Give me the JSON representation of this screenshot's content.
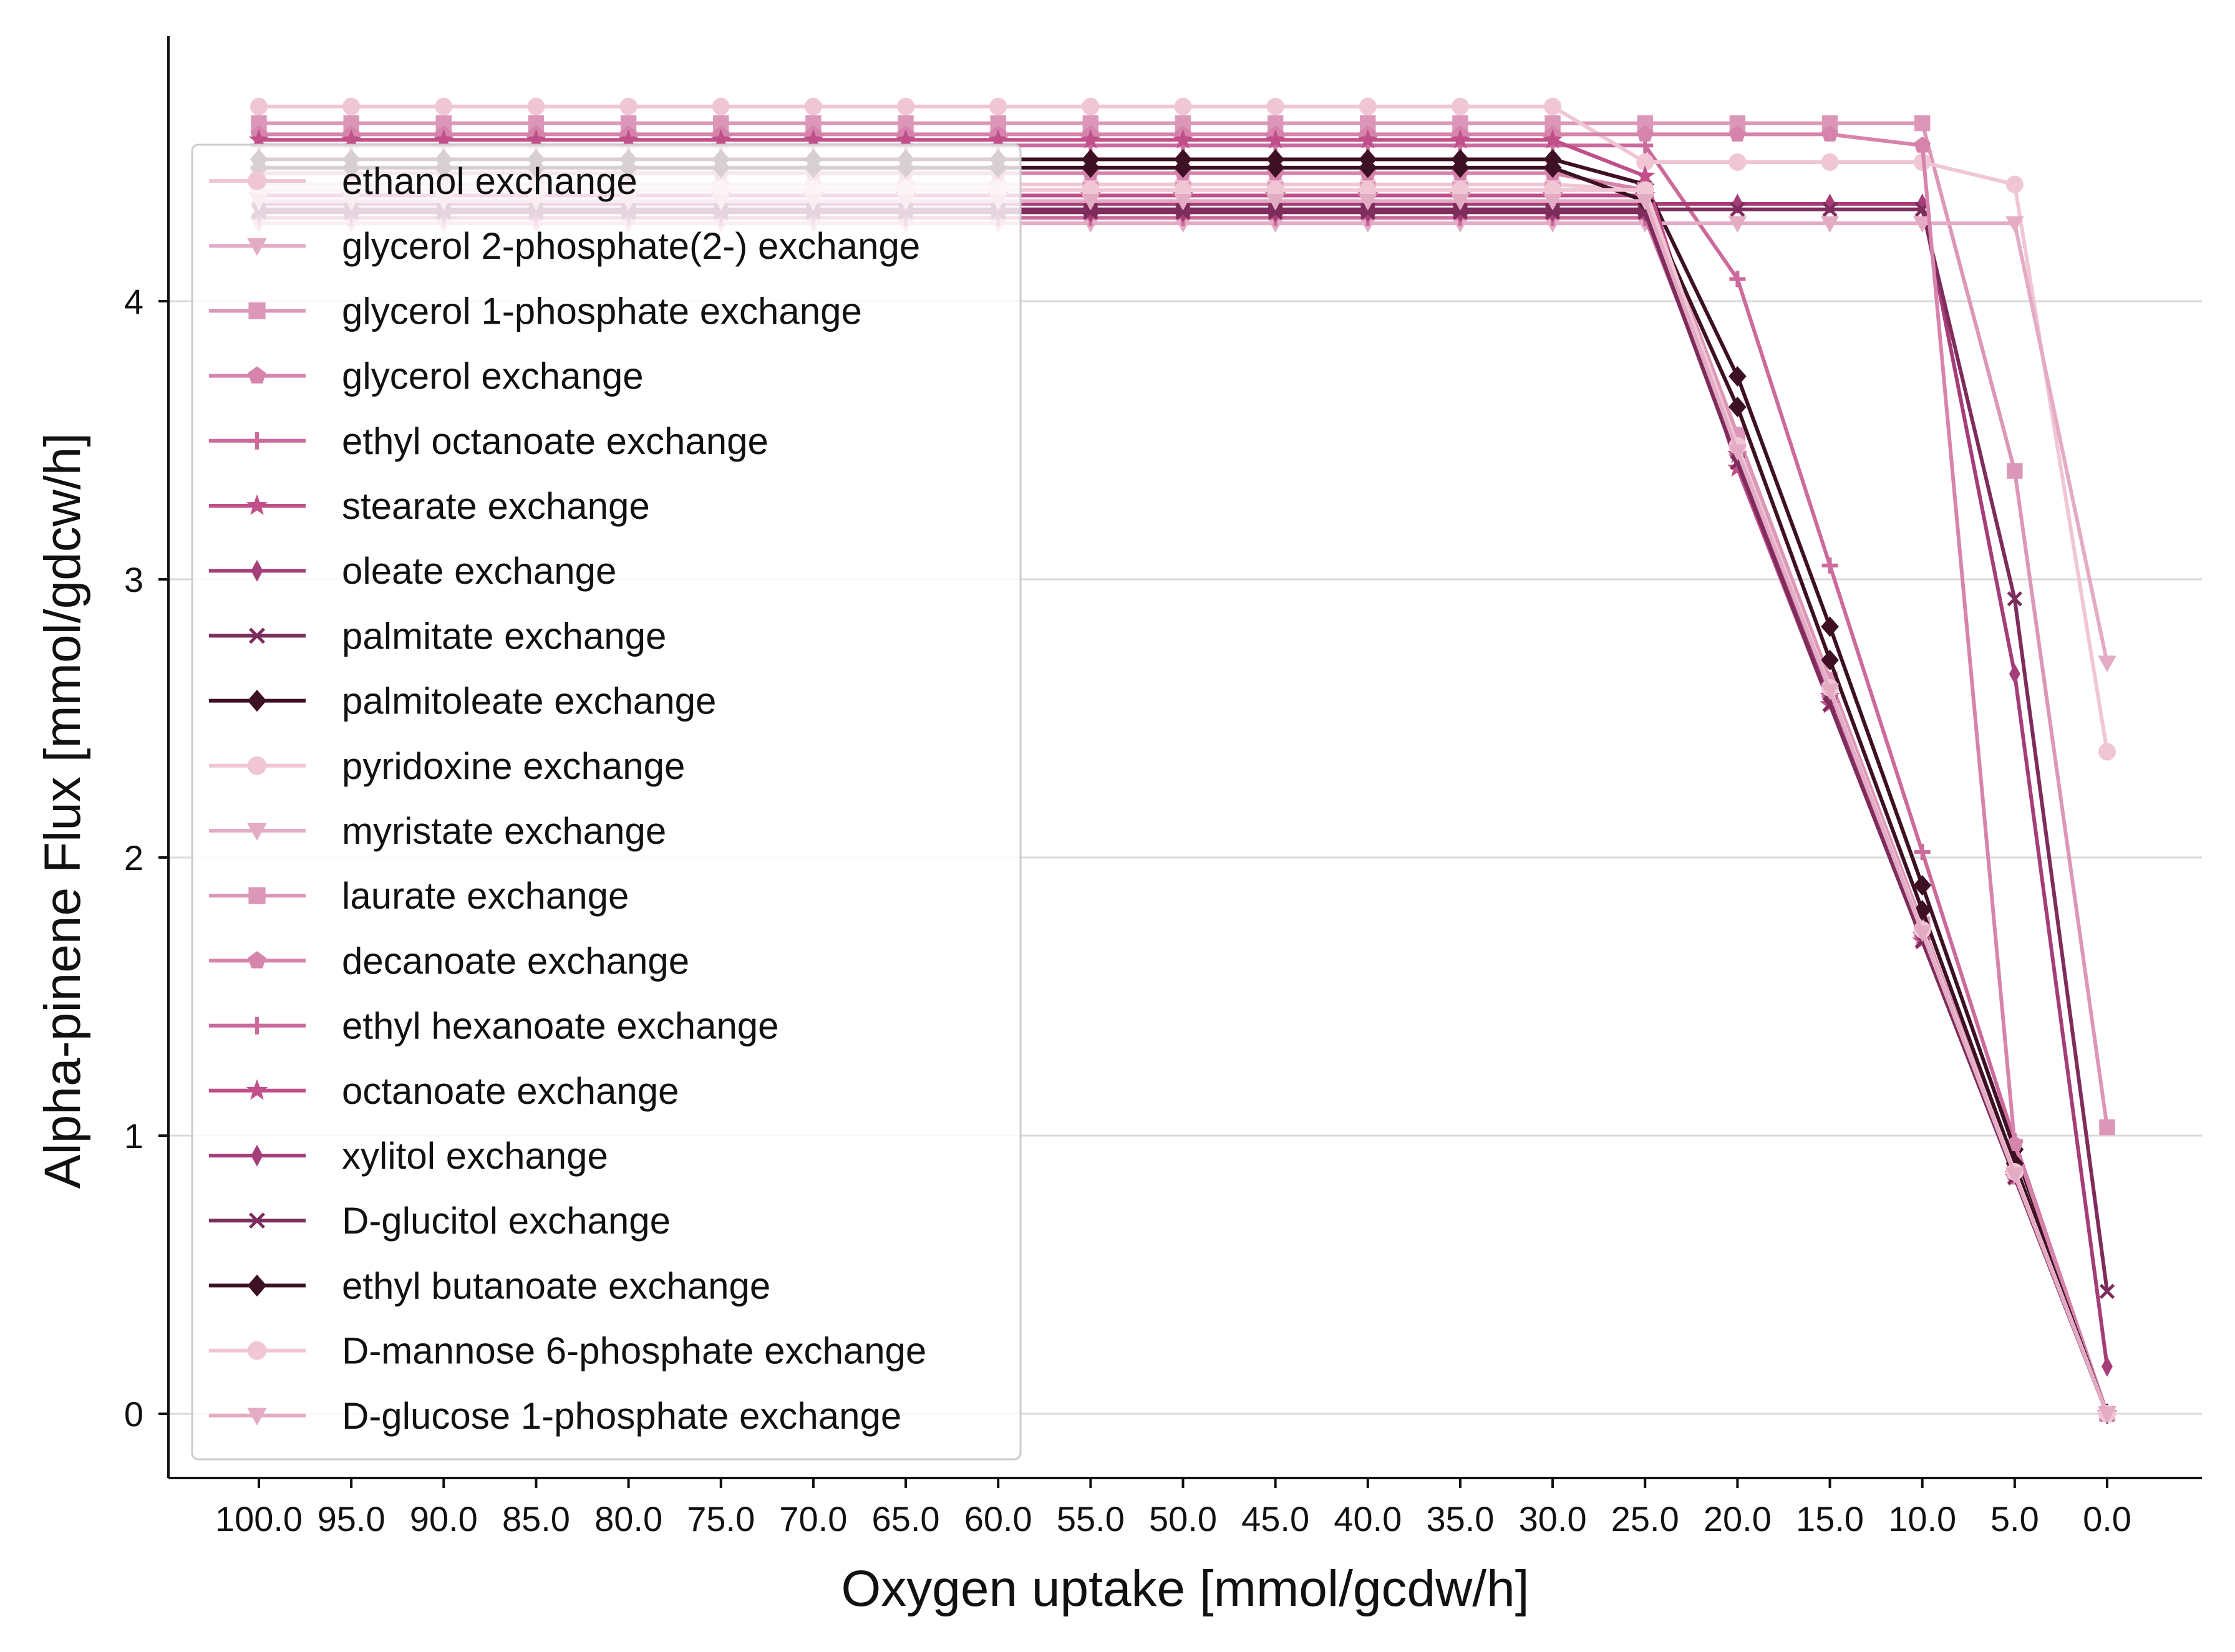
{
  "chart_data": {
    "type": "line",
    "title": "",
    "xlabel": "Oxygen uptake [mmol/gcdw/h]",
    "ylabel": "Alpha-pinene Flux [mmol/gdcw/h]",
    "x": [
      100.0,
      95.0,
      90.0,
      85.0,
      80.0,
      75.0,
      70.0,
      65.0,
      60.0,
      55.0,
      50.0,
      45.0,
      40.0,
      35.0,
      30.0,
      25.0,
      20.0,
      15.0,
      10.0,
      5.0,
      0.0
    ],
    "x_tick_labels": [
      "100.0",
      "95.0",
      "90.0",
      "85.0",
      "80.0",
      "75.0",
      "70.0",
      "65.0",
      "60.0",
      "55.0",
      "50.0",
      "45.0",
      "40.0",
      "35.0",
      "30.0",
      "25.0",
      "20.0",
      "15.0",
      "10.0",
      "5.0",
      "0.0"
    ],
    "x_reversed": true,
    "y_ticks": [
      0,
      1,
      2,
      3,
      4
    ],
    "ylim": [
      -0.23,
      4.95
    ],
    "grid": "horizontal",
    "legend_position": "left",
    "series": [
      {
        "name": "ethanol exchange",
        "color": "#f0c6d5",
        "marker": "circle",
        "values": [
          4.42,
          4.42,
          4.42,
          4.42,
          4.42,
          4.42,
          4.42,
          4.42,
          4.42,
          4.42,
          4.42,
          4.42,
          4.42,
          4.42,
          4.42,
          4.4,
          3.48,
          2.62,
          1.75,
          0.86,
          0.0
        ]
      },
      {
        "name": "glycerol 2-phosphate(2-) exchange",
        "color": "#e4abc4",
        "marker": "triangle-down",
        "values": [
          4.33,
          4.33,
          4.33,
          4.33,
          4.33,
          4.33,
          4.33,
          4.33,
          4.33,
          4.33,
          4.33,
          4.33,
          4.33,
          4.33,
          4.33,
          4.33,
          3.5,
          2.6,
          1.73,
          0.86,
          0.0
        ]
      },
      {
        "name": "glycerol 1-phosphate exchange",
        "color": "#dc97b8",
        "marker": "square",
        "values": [
          4.64,
          4.64,
          4.64,
          4.64,
          4.64,
          4.64,
          4.64,
          4.64,
          4.64,
          4.64,
          4.64,
          4.64,
          4.64,
          4.64,
          4.64,
          4.64,
          4.64,
          4.64,
          4.64,
          3.39,
          1.03
        ]
      },
      {
        "name": "glycerol exchange",
        "color": "#d684ac",
        "marker": "pentagon",
        "values": [
          4.46,
          4.46,
          4.46,
          4.46,
          4.46,
          4.46,
          4.46,
          4.46,
          4.46,
          4.46,
          4.46,
          4.46,
          4.46,
          4.46,
          4.46,
          4.4,
          3.45,
          2.6,
          1.73,
          0.85,
          0.0
        ]
      },
      {
        "name": "ethyl octanoate exchange",
        "color": "#cc6a9c",
        "marker": "plus",
        "values": [
          4.56,
          4.56,
          4.56,
          4.56,
          4.56,
          4.56,
          4.56,
          4.56,
          4.56,
          4.56,
          4.56,
          4.56,
          4.56,
          4.56,
          4.56,
          4.56,
          4.08,
          3.05,
          2.02,
          0.98,
          0.0
        ]
      },
      {
        "name": "stearate exchange",
        "color": "#c04f8a",
        "marker": "star",
        "values": [
          4.38,
          4.38,
          4.38,
          4.38,
          4.38,
          4.38,
          4.38,
          4.38,
          4.38,
          4.38,
          4.38,
          4.38,
          4.38,
          4.38,
          4.38,
          4.38,
          3.45,
          2.58,
          1.72,
          0.86,
          0.0
        ]
      },
      {
        "name": "oleate exchange",
        "color": "#a53d78",
        "marker": "thin-diamond",
        "values": [
          4.35,
          4.35,
          4.35,
          4.35,
          4.35,
          4.35,
          4.35,
          4.35,
          4.35,
          4.35,
          4.35,
          4.35,
          4.35,
          4.35,
          4.35,
          4.35,
          4.35,
          4.35,
          4.35,
          2.66,
          0.17
        ]
      },
      {
        "name": "palmitate exchange",
        "color": "#7d2c5c",
        "marker": "x",
        "values": [
          4.33,
          4.33,
          4.33,
          4.33,
          4.33,
          4.33,
          4.33,
          4.33,
          4.33,
          4.33,
          4.33,
          4.33,
          4.33,
          4.33,
          4.33,
          4.33,
          4.33,
          4.33,
          4.33,
          2.93,
          0.44
        ]
      },
      {
        "name": "palmitoleate exchange",
        "color": "#3e1024",
        "marker": "diamond",
        "values": [
          4.51,
          4.51,
          4.51,
          4.51,
          4.51,
          4.51,
          4.51,
          4.51,
          4.51,
          4.51,
          4.51,
          4.51,
          4.51,
          4.51,
          4.51,
          4.42,
          3.73,
          2.83,
          1.9,
          0.95,
          0.0
        ]
      },
      {
        "name": "pyridoxine exchange",
        "color": "#f0c6d5",
        "marker": "circle",
        "values": [
          4.7,
          4.7,
          4.7,
          4.7,
          4.7,
          4.7,
          4.7,
          4.7,
          4.7,
          4.7,
          4.7,
          4.7,
          4.7,
          4.7,
          4.7,
          4.5,
          4.5,
          4.5,
          4.5,
          4.42,
          2.38
        ]
      },
      {
        "name": "myristate exchange",
        "color": "#e4abc4",
        "marker": "triangle-down",
        "values": [
          4.28,
          4.28,
          4.28,
          4.28,
          4.28,
          4.28,
          4.28,
          4.28,
          4.28,
          4.28,
          4.28,
          4.28,
          4.28,
          4.28,
          4.28,
          4.28,
          4.28,
          4.28,
          4.28,
          4.28,
          2.7
        ]
      },
      {
        "name": "laurate exchange",
        "color": "#dc97b8",
        "marker": "square",
        "values": [
          4.4,
          4.4,
          4.4,
          4.4,
          4.4,
          4.4,
          4.4,
          4.4,
          4.4,
          4.4,
          4.4,
          4.4,
          4.4,
          4.4,
          4.4,
          4.4,
          3.52,
          2.64,
          1.76,
          0.88,
          0.0
        ]
      },
      {
        "name": "decanoate exchange",
        "color": "#d684ac",
        "marker": "pentagon",
        "values": [
          4.6,
          4.6,
          4.6,
          4.6,
          4.6,
          4.6,
          4.6,
          4.6,
          4.6,
          4.6,
          4.6,
          4.6,
          4.6,
          4.6,
          4.6,
          4.6,
          4.6,
          4.6,
          4.56,
          0.97,
          0.0
        ]
      },
      {
        "name": "ethyl hexanoate exchange",
        "color": "#cc6a9c",
        "marker": "plus",
        "values": [
          4.3,
          4.3,
          4.3,
          4.3,
          4.3,
          4.3,
          4.3,
          4.3,
          4.3,
          4.3,
          4.3,
          4.3,
          4.3,
          4.3,
          4.3,
          4.3,
          3.45,
          2.58,
          1.72,
          0.86,
          0.0
        ]
      },
      {
        "name": "octanoate exchange",
        "color": "#c04f8a",
        "marker": "star",
        "values": [
          4.58,
          4.58,
          4.58,
          4.58,
          4.58,
          4.58,
          4.58,
          4.58,
          4.58,
          4.58,
          4.58,
          4.58,
          4.58,
          4.58,
          4.58,
          4.45,
          3.4,
          2.55,
          1.7,
          0.85,
          0.0
        ]
      },
      {
        "name": "xylitol exchange",
        "color": "#a53d78",
        "marker": "thin-diamond",
        "values": [
          4.32,
          4.32,
          4.32,
          4.32,
          4.32,
          4.32,
          4.32,
          4.32,
          4.32,
          4.32,
          4.32,
          4.32,
          4.32,
          4.32,
          4.32,
          4.32,
          3.44,
          2.58,
          1.72,
          0.86,
          0.0
        ]
      },
      {
        "name": "D-glucitol exchange",
        "color": "#7d2c5c",
        "marker": "x",
        "values": [
          4.32,
          4.32,
          4.32,
          4.32,
          4.32,
          4.32,
          4.32,
          4.32,
          4.32,
          4.32,
          4.32,
          4.32,
          4.32,
          4.32,
          4.32,
          4.32,
          3.42,
          2.55,
          1.7,
          0.85,
          0.0
        ]
      },
      {
        "name": "ethyl butanoate exchange",
        "color": "#3e1024",
        "marker": "diamond",
        "values": [
          4.48,
          4.48,
          4.48,
          4.48,
          4.48,
          4.48,
          4.48,
          4.48,
          4.48,
          4.48,
          4.48,
          4.48,
          4.48,
          4.48,
          4.48,
          4.36,
          3.62,
          2.71,
          1.81,
          0.9,
          0.0
        ]
      },
      {
        "name": "D-mannose 6-phosphate exchange",
        "color": "#f0c6d5",
        "marker": "circle",
        "values": [
          4.4,
          4.4,
          4.4,
          4.4,
          4.4,
          4.4,
          4.4,
          4.4,
          4.4,
          4.4,
          4.4,
          4.4,
          4.4,
          4.4,
          4.4,
          4.4,
          3.48,
          2.61,
          1.74,
          0.87,
          0.0
        ]
      },
      {
        "name": "D-glucose 1-phosphate exchange",
        "color": "#e4abc4",
        "marker": "triangle-down",
        "values": [
          4.36,
          4.36,
          4.36,
          4.36,
          4.36,
          4.36,
          4.36,
          4.36,
          4.36,
          4.36,
          4.36,
          4.36,
          4.36,
          4.36,
          4.36,
          4.36,
          3.46,
          2.6,
          1.73,
          0.86,
          0.0
        ]
      }
    ]
  }
}
